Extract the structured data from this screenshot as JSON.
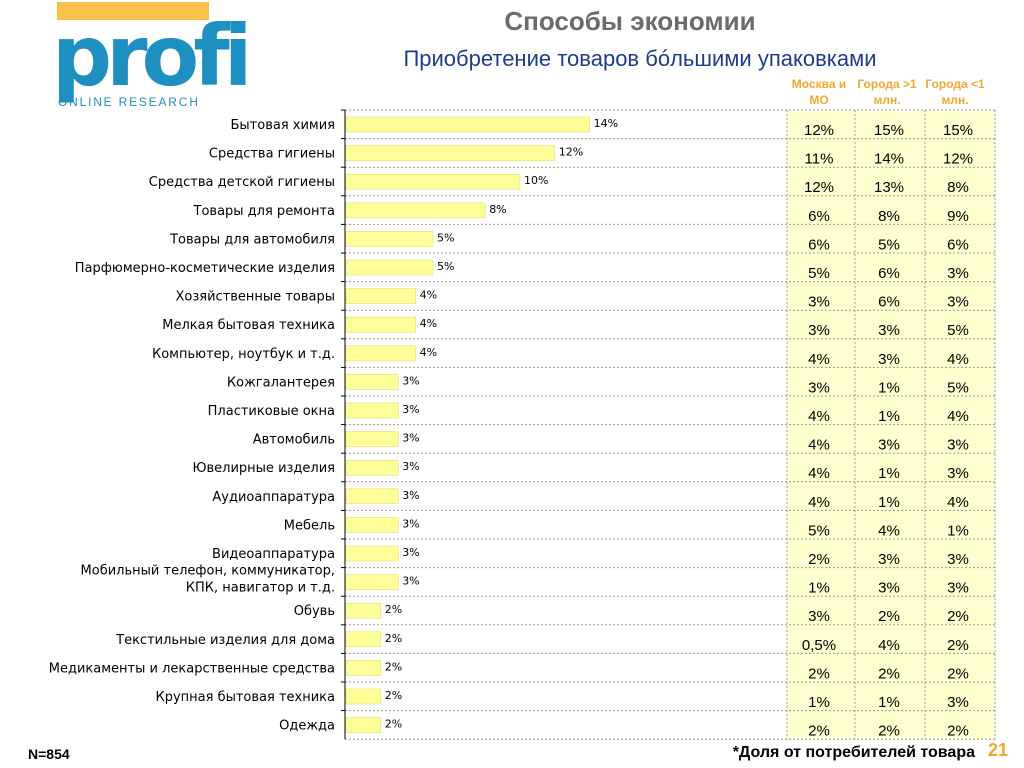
{
  "logo": {
    "brand": "profi",
    "tagline": "ONLINE RESEARCH",
    "accent_color": "#f7c14a",
    "brand_color": "#1d8fc0"
  },
  "header": {
    "title": "Способы экономии",
    "subtitle": "Приобретение товаров бóльшими упаковками"
  },
  "columns": [
    "Москва и МО",
    "Города >1 млн.",
    "Города <1 млн."
  ],
  "footer": {
    "sample": "N=854",
    "note": "*Доля  от потребителей товара",
    "page": "21"
  },
  "chart_data": {
    "type": "bar",
    "orientation": "horizontal",
    "bar_color": "#ffff99",
    "categories": [
      "Бытовая химия",
      "Средства гигиены",
      "Средства детской гигиены",
      "Товары для ремонта",
      "Товары для автомобиля",
      "Парфюмерно-косметические изделия",
      "Хозяйственные товары",
      "Мелкая бытовая техника",
      "Компьютер, ноутбук и т.д.",
      "Кожгалантерея",
      "Пластиковые окна",
      "Автомобиль",
      "Ювелирные изделия",
      "Аудиоаппаратура",
      "Мебель",
      "Видеоаппаратура",
      "Мобильный телефон, коммуникатор,\nКПК, навигатор и т.д.",
      "Обувь",
      "Текстильные изделия для дома",
      "Медикаменты и лекарственные средства",
      "Крупная бытовая техника",
      "Одежда"
    ],
    "values": [
      14,
      12,
      10,
      8,
      5,
      5,
      4,
      4,
      4,
      3,
      3,
      3,
      3,
      3,
      3,
      3,
      3,
      2,
      2,
      2,
      2,
      2
    ],
    "value_labels": [
      "14%",
      "12%",
      "10%",
      "8%",
      "5%",
      "5%",
      "4%",
      "4%",
      "4%",
      "3%",
      "3%",
      "3%",
      "3%",
      "3%",
      "3%",
      "3%",
      "3%",
      "2%",
      "2%",
      "2%",
      "2%",
      "2%"
    ],
    "table": [
      [
        "12%",
        "15%",
        "15%"
      ],
      [
        "11%",
        "14%",
        "12%"
      ],
      [
        "12%",
        "13%",
        "8%"
      ],
      [
        "6%",
        "8%",
        "9%"
      ],
      [
        "6%",
        "5%",
        "6%"
      ],
      [
        "5%",
        "6%",
        "3%"
      ],
      [
        "3%",
        "6%",
        "3%"
      ],
      [
        "3%",
        "3%",
        "5%"
      ],
      [
        "4%",
        "3%",
        "4%"
      ],
      [
        "3%",
        "1%",
        "5%"
      ],
      [
        "4%",
        "1%",
        "4%"
      ],
      [
        "4%",
        "3%",
        "3%"
      ],
      [
        "4%",
        "1%",
        "3%"
      ],
      [
        "4%",
        "1%",
        "4%"
      ],
      [
        "5%",
        "4%",
        "1%"
      ],
      [
        "2%",
        "3%",
        "3%"
      ],
      [
        "1%",
        "3%",
        "3%"
      ],
      [
        "3%",
        "2%",
        "2%"
      ],
      [
        "0,5%",
        "4%",
        "2%"
      ],
      [
        "2%",
        "2%",
        "2%"
      ],
      [
        "1%",
        "1%",
        "3%"
      ],
      [
        "2%",
        "2%",
        "2%"
      ]
    ]
  }
}
